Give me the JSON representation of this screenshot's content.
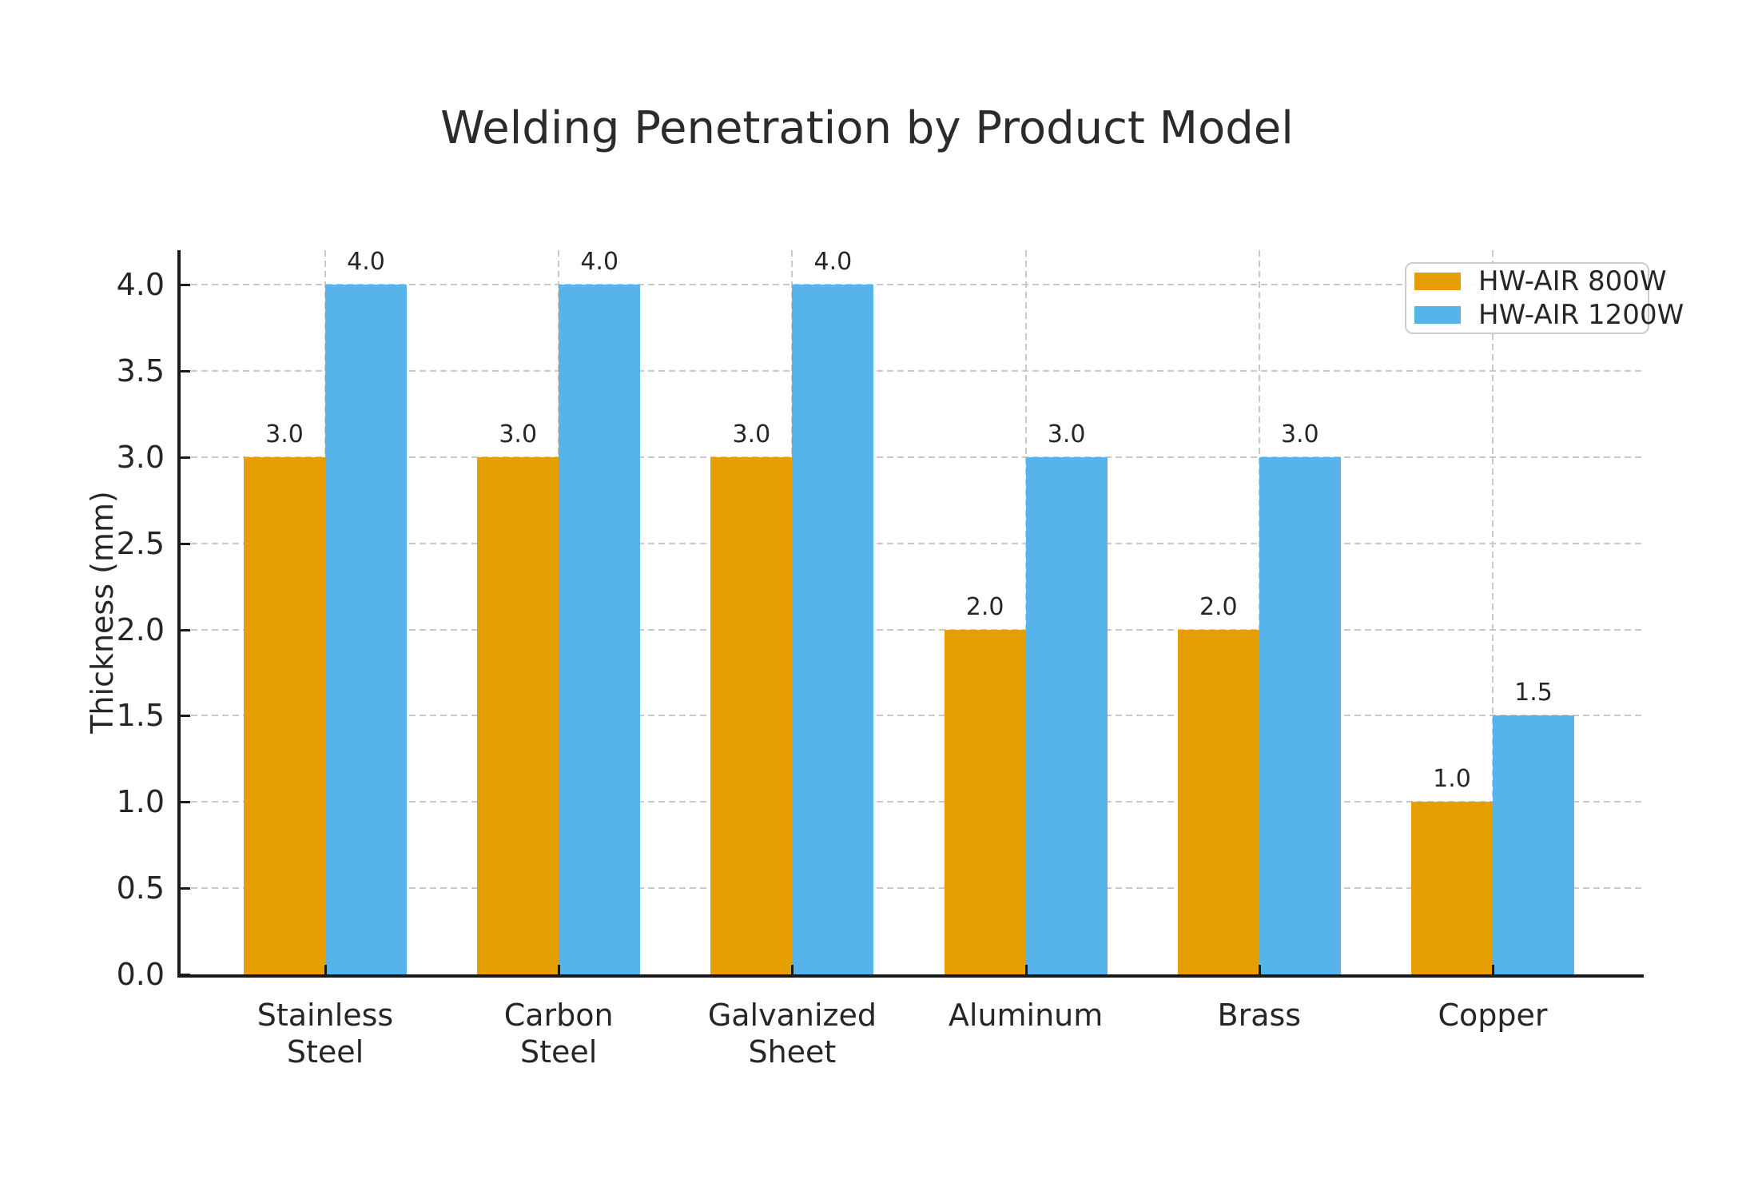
{
  "title": "Welding Penetration by Product Model",
  "ylabel": "Thickness (mm)",
  "colors": {
    "series_800w": "#E69F00",
    "series_1200w": "#56B4E9",
    "axis": "#1a1a1a",
    "grid": "#c9c9c9",
    "text": "#262626"
  },
  "chart_data": {
    "type": "bar",
    "title": "Welding Penetration by Product Model",
    "xlabel": "",
    "ylabel": "Thickness (mm)",
    "categories": [
      "Stainless\nSteel",
      "Carbon\nSteel",
      "Galvanized\nSheet",
      "Aluminum",
      "Brass",
      "Copper"
    ],
    "series": [
      {
        "name": "HW-AIR 800W",
        "color": "#E69F00",
        "values": [
          3.0,
          3.0,
          3.0,
          2.0,
          2.0,
          1.0
        ]
      },
      {
        "name": "HW-AIR 1200W",
        "color": "#56B4E9",
        "values": [
          4.0,
          4.0,
          4.0,
          3.0,
          3.0,
          1.5
        ]
      }
    ],
    "value_labels": [
      [
        "3.0",
        "3.0",
        "3.0",
        "2.0",
        "2.0",
        "1.0"
      ],
      [
        "4.0",
        "4.0",
        "4.0",
        "3.0",
        "3.0",
        "1.5"
      ]
    ],
    "ylim": [
      0.0,
      4.2
    ],
    "yticks": [
      0.0,
      0.5,
      1.0,
      1.5,
      2.0,
      2.5,
      3.0,
      3.5,
      4.0
    ],
    "grid": true,
    "grid_style": "dashed",
    "legend_position": "upper right"
  }
}
